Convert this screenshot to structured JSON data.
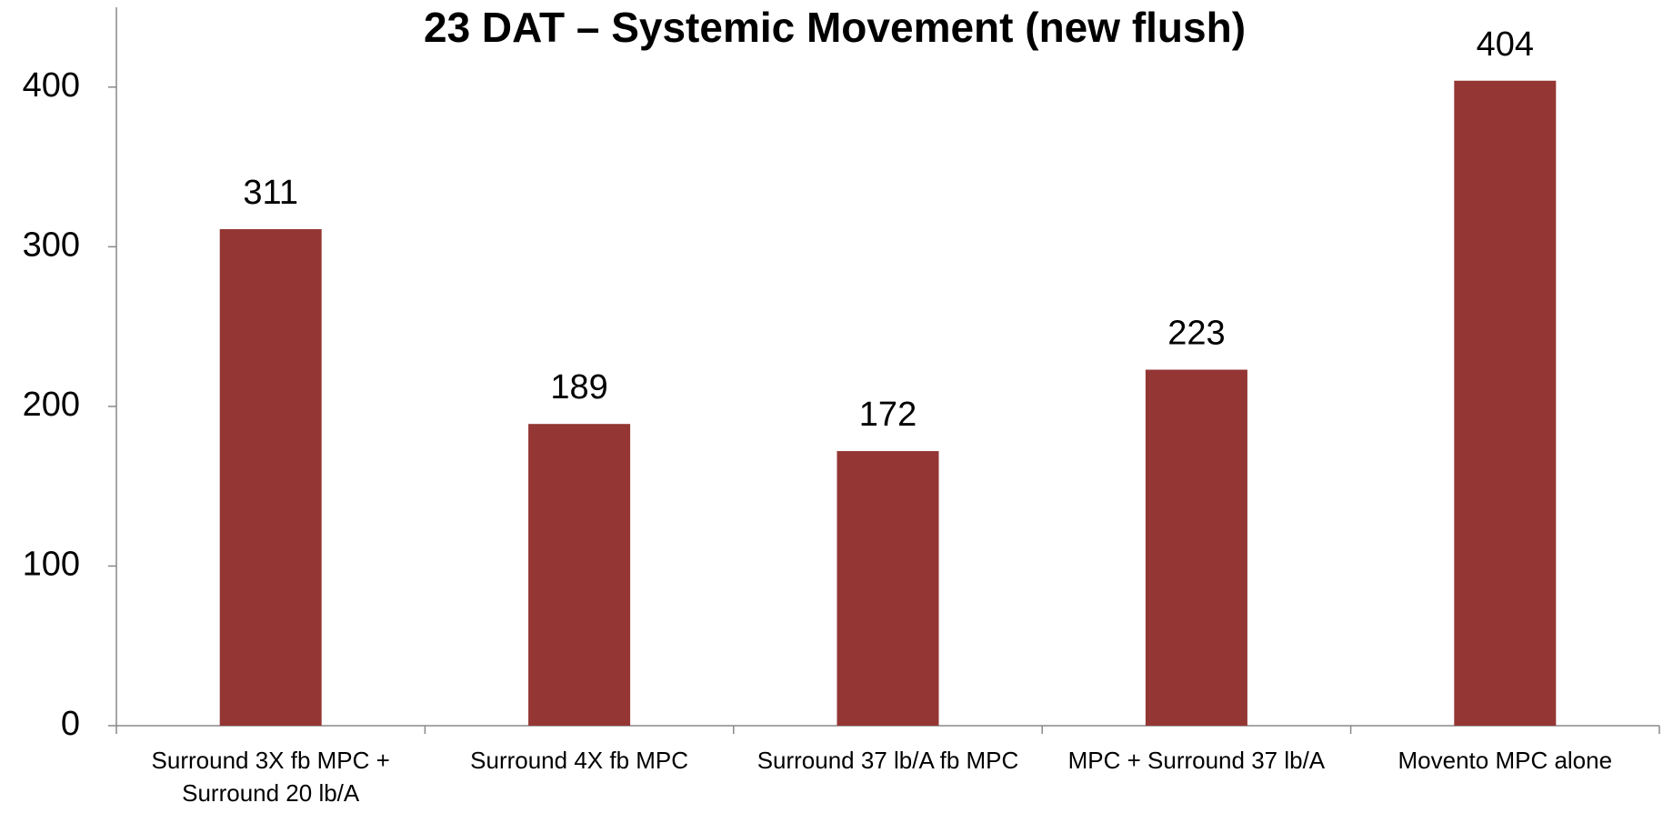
{
  "chart_data": {
    "type": "bar",
    "title": "23 DAT – Systemic Movement (new flush)",
    "categories": [
      "Surround 3X fb MPC + Surround 20 lb/A",
      "Surround 4X fb MPC",
      "Surround 37 lb/A fb MPC",
      "MPC + Surround 37 lb/A",
      "Movento MPC alone"
    ],
    "values": [
      311,
      189,
      172,
      223,
      404
    ],
    "color": "#943634",
    "ylim": [
      0,
      450
    ],
    "yticks": [
      0,
      100,
      200,
      300,
      400
    ],
    "grid": false
  }
}
